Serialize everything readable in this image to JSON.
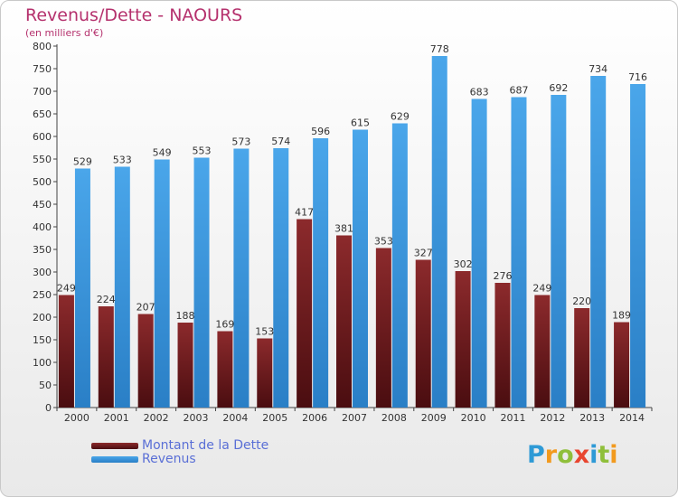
{
  "header": {
    "title": "Revenus/Dette - NAOURS",
    "subtitle": "(en milliers d'€)"
  },
  "legend": {
    "debt_label": "Montant de la Dette",
    "revenue_label": "Revenus"
  },
  "logo": {
    "text": "Proxiti"
  },
  "colors": {
    "debt": "#7a1f22",
    "revenue": "#3d9be0",
    "title": "#b5316d",
    "legend_text": "#5a6fd6"
  },
  "chart_data": {
    "type": "bar",
    "categories": [
      "2000",
      "2001",
      "2002",
      "2003",
      "2004",
      "2005",
      "2006",
      "2007",
      "2008",
      "2009",
      "2010",
      "2011",
      "2012",
      "2013",
      "2014"
    ],
    "series": [
      {
        "name": "Montant de la Dette",
        "values": [
          249,
          224,
          207,
          188,
          169,
          153,
          417,
          381,
          353,
          327,
          302,
          276,
          249,
          220,
          189
        ]
      },
      {
        "name": "Revenus",
        "values": [
          529,
          533,
          549,
          553,
          573,
          574,
          596,
          615,
          629,
          778,
          683,
          687,
          692,
          734,
          716
        ]
      }
    ],
    "title": "Revenus/Dette - NAOURS",
    "ylabel": "(en milliers d'€)",
    "ylim": [
      0,
      800
    ],
    "ytick_step": 50,
    "yticks": [
      0,
      50,
      100,
      150,
      200,
      250,
      300,
      350,
      400,
      450,
      500,
      550,
      600,
      650,
      700,
      750,
      800
    ],
    "grid": false,
    "legend_position": "bottom-left"
  }
}
